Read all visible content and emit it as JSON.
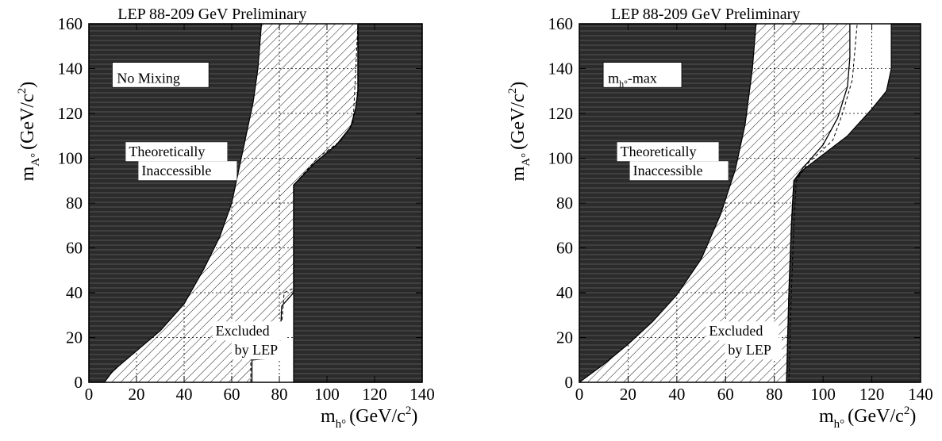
{
  "chart_data": [
    {
      "type": "area",
      "title": "LEP 88-209 GeV Preliminary",
      "scenario_label": "No Mixing",
      "xlabel": {
        "main": "m",
        "sub": "h°",
        "unit": "(GeV/c",
        "sup": "2",
        "close": ")"
      },
      "ylabel": {
        "main": "m",
        "sub": "A°",
        "unit": "(GeV/c",
        "sup": "2",
        "close": ")"
      },
      "xlim": [
        0,
        140
      ],
      "ylim": [
        0,
        160
      ],
      "xticks": [
        0,
        20,
        40,
        60,
        80,
        100,
        120,
        140
      ],
      "yticks": [
        0,
        20,
        40,
        60,
        80,
        100,
        120,
        140,
        160
      ],
      "grid": true,
      "annotations": {
        "theory_line1": "Theoretically",
        "theory_line2": "Inaccessible",
        "excluded_line1": "Excluded",
        "excluded_line2": "by LEP"
      },
      "theoretically_inaccessible_left_boundary": [
        [
          6.5,
          0
        ],
        [
          10,
          5
        ],
        [
          20,
          14
        ],
        [
          30,
          23
        ],
        [
          40,
          35
        ],
        [
          48,
          50
        ],
        [
          55,
          65
        ],
        [
          60,
          80
        ],
        [
          63,
          95
        ],
        [
          66,
          110
        ],
        [
          69,
          125
        ],
        [
          71,
          140
        ],
        [
          72.5,
          160
        ]
      ],
      "theoretically_inaccessible_right_boundary": [
        [
          86,
          0
        ],
        [
          86,
          88
        ],
        [
          95,
          98
        ],
        [
          104,
          106
        ],
        [
          110,
          114
        ],
        [
          112,
          122
        ],
        [
          113,
          130
        ],
        [
          113,
          160
        ]
      ],
      "excluded_region_right_boundary": [
        [
          68.5,
          0
        ],
        [
          68.5,
          10
        ],
        [
          80,
          11
        ],
        [
          81,
          34
        ],
        [
          86,
          40
        ],
        [
          86,
          88
        ],
        [
          95,
          98
        ],
        [
          104,
          106
        ],
        [
          110,
          114
        ],
        [
          112,
          122
        ],
        [
          113,
          130
        ],
        [
          113,
          160
        ]
      ],
      "expected_limit_dashed": [
        [
          68,
          0
        ],
        [
          68,
          10
        ],
        [
          80,
          11
        ],
        [
          82,
          40
        ],
        [
          86,
          42
        ],
        [
          86,
          88
        ],
        [
          96,
          100
        ],
        [
          106,
          108
        ],
        [
          111,
          116
        ],
        [
          113,
          160
        ]
      ]
    },
    {
      "type": "area",
      "title": "LEP 88-209 GeV Preliminary",
      "scenario_label": {
        "main": "m",
        "sub": "h°",
        "suffix": "-max"
      },
      "xlabel": {
        "main": "m",
        "sub": "h°",
        "unit": "(GeV/c",
        "sup": "2",
        "close": ")"
      },
      "ylabel": {
        "main": "m",
        "sub": "A°",
        "unit": "(GeV/c",
        "sup": "2",
        "close": ")"
      },
      "xlim": [
        0,
        140
      ],
      "ylim": [
        0,
        160
      ],
      "xticks": [
        0,
        20,
        40,
        60,
        80,
        100,
        120,
        140
      ],
      "yticks": [
        0,
        20,
        40,
        60,
        80,
        100,
        120,
        140,
        160
      ],
      "grid": true,
      "annotations": {
        "theory_line1": "Theoretically",
        "theory_line2": "Inaccessible",
        "excluded_line1": "Excluded",
        "excluded_line2": "by LEP"
      },
      "theoretically_inaccessible_left_boundary": [
        [
          0,
          0
        ],
        [
          10,
          8
        ],
        [
          20,
          17
        ],
        [
          30,
          27
        ],
        [
          40,
          39
        ],
        [
          50,
          55
        ],
        [
          58,
          75
        ],
        [
          64,
          95
        ],
        [
          68,
          115
        ],
        [
          71,
          140
        ],
        [
          72.5,
          160
        ]
      ],
      "theoretically_inaccessible_right_boundary": [
        [
          85,
          0
        ],
        [
          86,
          40
        ],
        [
          87,
          70
        ],
        [
          88,
          90
        ],
        [
          92,
          95
        ],
        [
          110,
          110
        ],
        [
          120,
          122
        ],
        [
          126,
          130
        ],
        [
          128,
          140
        ],
        [
          128,
          160
        ]
      ],
      "excluded_region_right_boundary": [
        [
          85,
          0
        ],
        [
          86,
          40
        ],
        [
          87,
          70
        ],
        [
          88,
          90
        ],
        [
          92,
          96
        ],
        [
          100,
          106
        ],
        [
          106,
          118
        ],
        [
          110,
          132
        ],
        [
          111,
          145
        ],
        [
          111,
          160
        ]
      ],
      "expected_limit_dashed": [
        [
          86,
          0
        ],
        [
          87,
          40
        ],
        [
          88,
          70
        ],
        [
          89,
          90
        ],
        [
          94,
          98
        ],
        [
          104,
          108
        ],
        [
          108,
          120
        ],
        [
          112,
          135
        ],
        [
          114,
          160
        ]
      ]
    }
  ]
}
